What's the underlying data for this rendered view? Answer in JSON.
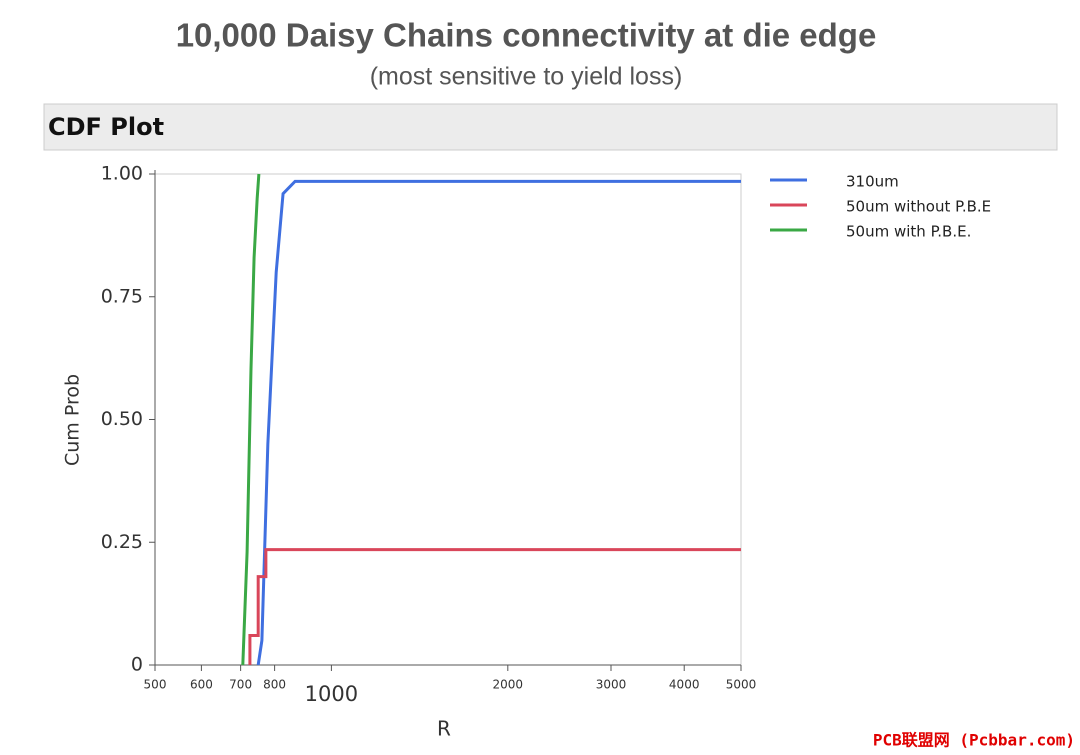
{
  "chart_data": {
    "type": "line",
    "title": "10,000 Daisy Chains connectivity at die edge",
    "subtitle": "(most sensitive to yield loss)",
    "panel_title": "CDF Plot",
    "x_label": "R",
    "y_label": "Cum Prob",
    "xscale": "log",
    "xlim": [
      500,
      5000
    ],
    "xticks": [
      500,
      600,
      700,
      800,
      1000,
      2000,
      3000,
      4000,
      5000
    ],
    "ylim": [
      0,
      1
    ],
    "yticks": [
      0,
      0.25,
      {
        "value": 0.5,
        "label": "0.50"
      },
      0.75,
      {
        "value": 1,
        "label": "1.00"
      }
    ],
    "legend": "right",
    "series": [
      {
        "name": "310um",
        "color": "#3f6fe0",
        "x": [
          750,
          761,
          779,
          805,
          827,
          867,
          5000
        ],
        "values": [
          0,
          0.05,
          0.45,
          0.8,
          0.96,
          0.985,
          0.985
        ]
      },
      {
        "name": "50um without P.B.E",
        "color": "#d9465a",
        "x": [
          726,
          726,
          750,
          750,
          773,
          773,
          5000
        ],
        "values": [
          0,
          0.06,
          0.06,
          0.18,
          0.18,
          0.235,
          0.235
        ]
      },
      {
        "name": "50um with P.B.E.",
        "color": "#3aa845",
        "x": [
          706,
          718,
          729,
          738,
          747,
          752
        ],
        "values": [
          0,
          0.23,
          0.6,
          0.83,
          0.95,
          1
        ]
      }
    ],
    "watermark": "PCB联盟网 (Pcbbar.com)"
  }
}
